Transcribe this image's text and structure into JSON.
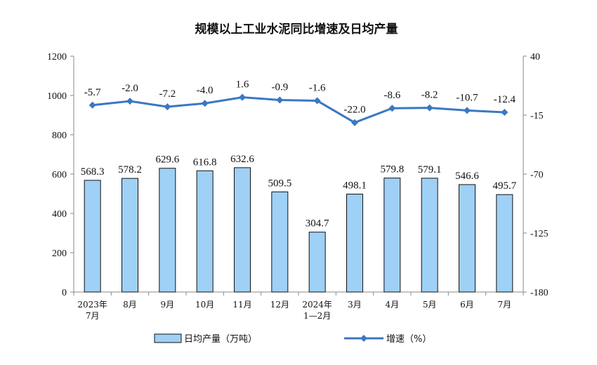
{
  "chart_data": {
    "type": "bar",
    "title": "规模以上工业水泥同比增速及日均产量",
    "categories": [
      [
        "2023年",
        "7月"
      ],
      [
        "8月"
      ],
      [
        "9月"
      ],
      [
        "10月"
      ],
      [
        "11月"
      ],
      [
        "12月"
      ],
      [
        "2024年",
        "1—2月"
      ],
      [
        "3月"
      ],
      [
        "4月"
      ],
      [
        "5月"
      ],
      [
        "6月"
      ],
      [
        "7月"
      ]
    ],
    "series": [
      {
        "name": "日均产量（万吨）",
        "type": "bar",
        "axis": "left",
        "color": "#9fd0f5",
        "values": [
          568.3,
          578.2,
          629.6,
          616.8,
          632.6,
          509.5,
          304.7,
          498.1,
          579.8,
          579.1,
          546.6,
          495.7
        ]
      },
      {
        "name": "增速（%）",
        "type": "line",
        "axis": "right",
        "color": "#3a78c2",
        "values": [
          -5.7,
          -2.0,
          -7.2,
          -4.0,
          1.6,
          -0.9,
          -1.6,
          -22.0,
          -8.6,
          -8.2,
          -10.7,
          -12.4
        ]
      }
    ],
    "y_left": {
      "range": [
        0,
        1200
      ],
      "ticks": [
        "0",
        "200",
        "400",
        "600",
        "800",
        "1000",
        "1200"
      ]
    },
    "y_right": {
      "range": [
        -180,
        40
      ],
      "ticks": [
        "-180",
        "-125",
        "-70",
        "-15",
        "40"
      ]
    },
    "legend_position": "bottom",
    "grid": false
  }
}
